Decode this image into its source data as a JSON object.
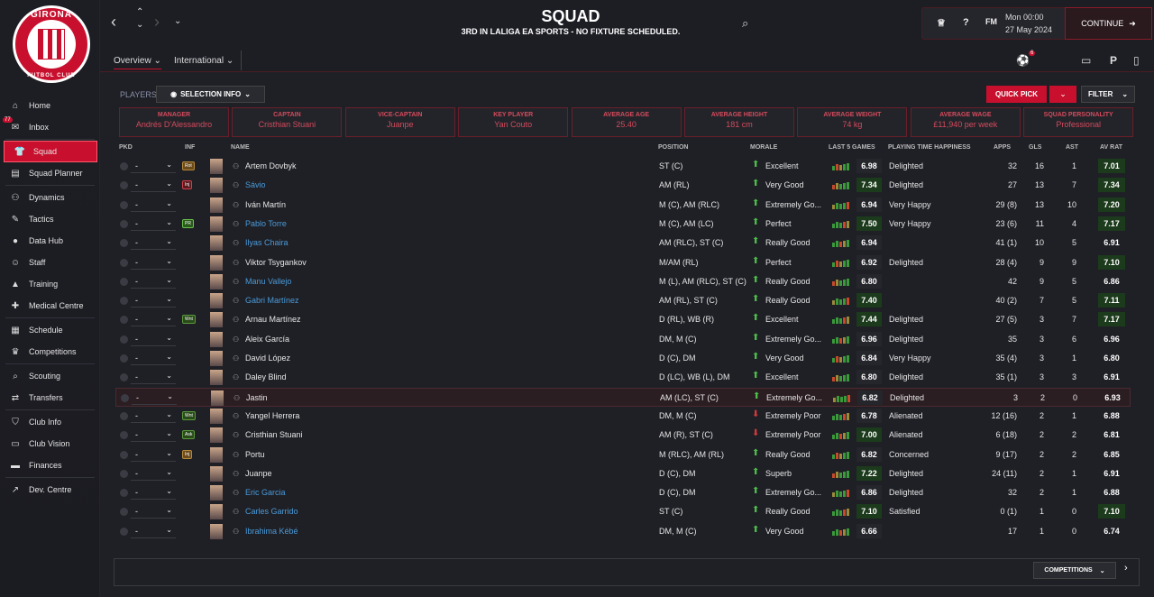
{
  "club": {
    "badge_top": "GIRONA",
    "badge_bottom": "FUTBOL CLUB"
  },
  "sidebar": {
    "items": [
      {
        "label": "Home",
        "icon": "home-icon",
        "glyph": "⌂"
      },
      {
        "label": "Inbox",
        "icon": "inbox-icon",
        "glyph": "✉",
        "badge": "77"
      },
      {
        "label": "Squad",
        "icon": "shirt-icon",
        "glyph": "👕",
        "active": true
      },
      {
        "label": "Squad Planner",
        "icon": "planner-icon",
        "glyph": "▤"
      },
      {
        "label": "Dynamics",
        "icon": "dynamics-icon",
        "glyph": "⚇"
      },
      {
        "label": "Tactics",
        "icon": "tactics-icon",
        "glyph": "✎"
      },
      {
        "label": "Data Hub",
        "icon": "datahub-icon",
        "glyph": "●"
      },
      {
        "label": "Staff",
        "icon": "staff-icon",
        "glyph": "☺"
      },
      {
        "label": "Training",
        "icon": "training-icon",
        "glyph": "▲"
      },
      {
        "label": "Medical Centre",
        "icon": "medical-icon",
        "glyph": "✚"
      },
      {
        "label": "Schedule",
        "icon": "schedule-icon",
        "glyph": "▦"
      },
      {
        "label": "Competitions",
        "icon": "trophy-icon",
        "glyph": "♛"
      },
      {
        "label": "Scouting",
        "icon": "scouting-icon",
        "glyph": "⌕"
      },
      {
        "label": "Transfers",
        "icon": "transfers-icon",
        "glyph": "⇄"
      },
      {
        "label": "Club Info",
        "icon": "club-info-icon",
        "glyph": "⛉"
      },
      {
        "label": "Club Vision",
        "icon": "club-vision-icon",
        "glyph": "▭"
      },
      {
        "label": "Finances",
        "icon": "finances-icon",
        "glyph": "▬"
      },
      {
        "label": "Dev. Centre",
        "icon": "dev-centre-icon",
        "glyph": "↗"
      }
    ]
  },
  "header": {
    "title": "SQUAD",
    "subtitle": "3RD IN LALIGA EA SPORTS - NO FIXTURE SCHEDULED.",
    "tabs": [
      "Overview",
      "International"
    ],
    "date_time": "Mon 00:00",
    "date": "27 May 2024",
    "continue_label": "CONTINUE",
    "fm_label": "FM",
    "notification_count": "6"
  },
  "toolbar": {
    "players_label": "PLAYERS",
    "selection_info": "SELECTION INFO",
    "quick_pick": "QUICK PICK",
    "filter": "FILTER"
  },
  "cards": [
    {
      "label": "MANAGER",
      "value": "Andrés D'Alessandro"
    },
    {
      "label": "CAPTAIN",
      "value": "Cristhian Stuani"
    },
    {
      "label": "VICE-CAPTAIN",
      "value": "Juanpe"
    },
    {
      "label": "KEY PLAYER",
      "value": "Yan Couto"
    },
    {
      "label": "AVERAGE AGE",
      "value": "25.40"
    },
    {
      "label": "AVERAGE HEIGHT",
      "value": "181 cm"
    },
    {
      "label": "AVERAGE WEIGHT",
      "value": "74 kg"
    },
    {
      "label": "AVERAGE WAGE",
      "value": "£11,940 per week"
    },
    {
      "label": "SQUAD PERSONALITY",
      "value": "Professional"
    }
  ],
  "table": {
    "headers": {
      "pkd": "PKD",
      "inf": "INF",
      "name": "NAME",
      "position": "POSITION",
      "morale": "MORALE",
      "last5": "LAST 5 GAMES",
      "pth": "PLAYING TIME HAPPINESS",
      "apps": "APPS",
      "gls": "GLS",
      "ast": "AST",
      "avrat": "AV RAT"
    },
    "rows": [
      {
        "pkd": "-",
        "inf": "Rot",
        "inf_type": "rot",
        "name": "Artem Dovbyk",
        "link": false,
        "position": "ST (C)",
        "morale": "Excellent",
        "morale_dir": "up",
        "last5": "6.98",
        "last5_good": false,
        "pth": "Delighted",
        "apps": "32",
        "gls": "16",
        "ast": "1",
        "avrat": "7.01",
        "avrat_good": true
      },
      {
        "pkd": "-",
        "inf": "Inj",
        "inf_type": "inj",
        "name": "Sávio",
        "link": true,
        "position": "AM (RL)",
        "morale": "Very Good",
        "morale_dir": "up",
        "last5": "7.34",
        "last5_good": true,
        "pth": "Delighted",
        "apps": "27",
        "gls": "13",
        "ast": "7",
        "avrat": "7.34",
        "avrat_good": true
      },
      {
        "pkd": "-",
        "inf": "",
        "inf_type": "",
        "name": "Iván Martín",
        "link": false,
        "position": "M (C), AM (RLC)",
        "morale": "Extremely Go...",
        "morale_dir": "up",
        "last5": "6.94",
        "last5_good": false,
        "pth": "Very Happy",
        "apps": "29 (8)",
        "gls": "13",
        "ast": "10",
        "avrat": "7.20",
        "avrat_good": true
      },
      {
        "pkd": "-",
        "inf": "PR",
        "inf_type": "pr",
        "name": "Pablo Torre",
        "link": true,
        "position": "M (C), AM (LC)",
        "morale": "Perfect",
        "morale_dir": "up",
        "last5": "7.50",
        "last5_good": true,
        "pth": "Very Happy",
        "apps": "23 (6)",
        "gls": "11",
        "ast": "4",
        "avrat": "7.17",
        "avrat_good": true
      },
      {
        "pkd": "-",
        "inf": "",
        "inf_type": "",
        "name": "Ilyas Chaira",
        "link": true,
        "position": "AM (RLC), ST (C)",
        "morale": "Really Good",
        "morale_dir": "up",
        "last5": "6.94",
        "last5_good": false,
        "pth": "",
        "apps": "41 (1)",
        "gls": "10",
        "ast": "5",
        "avrat": "6.91",
        "avrat_good": false
      },
      {
        "pkd": "-",
        "inf": "",
        "inf_type": "",
        "name": "Viktor Tsygankov",
        "link": false,
        "position": "M/AM (RL)",
        "morale": "Perfect",
        "morale_dir": "up",
        "last5": "6.92",
        "last5_good": false,
        "pth": "Delighted",
        "apps": "28 (4)",
        "gls": "9",
        "ast": "9",
        "avrat": "7.10",
        "avrat_good": true
      },
      {
        "pkd": "-",
        "inf": "",
        "inf_type": "",
        "name": "Manu Vallejo",
        "link": true,
        "position": "M (L), AM (RLC), ST (C)",
        "morale": "Really Good",
        "morale_dir": "up",
        "last5": "6.80",
        "last5_good": false,
        "pth": "",
        "apps": "42",
        "gls": "9",
        "ast": "5",
        "avrat": "6.86",
        "avrat_good": false
      },
      {
        "pkd": "-",
        "inf": "",
        "inf_type": "",
        "name": "Gabri Martínez",
        "link": true,
        "position": "AM (RL), ST (C)",
        "morale": "Really Good",
        "morale_dir": "up",
        "last5": "7.40",
        "last5_good": true,
        "pth": "",
        "apps": "40 (2)",
        "gls": "7",
        "ast": "5",
        "avrat": "7.11",
        "avrat_good": true
      },
      {
        "pkd": "-",
        "inf": "Wnt",
        "inf_type": "wnt",
        "name": "Arnau Martínez",
        "link": false,
        "position": "D (RL), WB (R)",
        "morale": "Excellent",
        "morale_dir": "up",
        "last5": "7.44",
        "last5_good": true,
        "pth": "Delighted",
        "apps": "27 (5)",
        "gls": "3",
        "ast": "7",
        "avrat": "7.17",
        "avrat_good": true
      },
      {
        "pkd": "-",
        "inf": "",
        "inf_type": "",
        "name": "Aleix García",
        "link": false,
        "position": "DM, M (C)",
        "morale": "Extremely Go...",
        "morale_dir": "up",
        "last5": "6.96",
        "last5_good": false,
        "pth": "Delighted",
        "apps": "35",
        "gls": "3",
        "ast": "6",
        "avrat": "6.96",
        "avrat_good": false
      },
      {
        "pkd": "-",
        "inf": "",
        "inf_type": "",
        "name": "David López",
        "link": false,
        "position": "D (C), DM",
        "morale": "Very Good",
        "morale_dir": "up",
        "last5": "6.84",
        "last5_good": false,
        "pth": "Very Happy",
        "apps": "35 (4)",
        "gls": "3",
        "ast": "1",
        "avrat": "6.80",
        "avrat_good": false
      },
      {
        "pkd": "-",
        "inf": "",
        "inf_type": "",
        "name": "Daley Blind",
        "link": false,
        "position": "D (LC), WB (L), DM",
        "morale": "Excellent",
        "morale_dir": "up",
        "last5": "6.80",
        "last5_good": false,
        "pth": "Delighted",
        "apps": "35 (1)",
        "gls": "3",
        "ast": "3",
        "avrat": "6.91",
        "avrat_good": false
      },
      {
        "pkd": "-",
        "inf": "",
        "inf_type": "",
        "name": "Jastin",
        "link": false,
        "position": "AM (LC), ST (C)",
        "morale": "Extremely Go...",
        "morale_dir": "up",
        "last5": "6.82",
        "last5_good": false,
        "pth": "Delighted",
        "apps": "3",
        "gls": "2",
        "ast": "0",
        "avrat": "6.93",
        "avrat_good": false,
        "highlight": true
      },
      {
        "pkd": "-",
        "inf": "Wnt",
        "inf_type": "wnt",
        "name": "Yangel Herrera",
        "link": false,
        "position": "DM, M (C)",
        "morale": "Extremely Poor",
        "morale_dir": "down",
        "last5": "6.78",
        "last5_good": false,
        "pth": "Alienated",
        "apps": "12 (16)",
        "gls": "2",
        "ast": "1",
        "avrat": "6.88",
        "avrat_good": false
      },
      {
        "pkd": "-",
        "inf": "Ask",
        "inf_type": "ask",
        "name": "Cristhian Stuani",
        "link": false,
        "position": "AM (R), ST (C)",
        "morale": "Extremely Poor",
        "morale_dir": "down",
        "last5": "7.00",
        "last5_good": true,
        "pth": "Alienated",
        "apps": "6 (18)",
        "gls": "2",
        "ast": "2",
        "avrat": "6.81",
        "avrat_good": false
      },
      {
        "pkd": "-",
        "inf": "Inj",
        "inf_type": "rot",
        "name": "Portu",
        "link": false,
        "position": "M (RLC), AM (RL)",
        "morale": "Really Good",
        "morale_dir": "up",
        "last5": "6.82",
        "last5_good": false,
        "pth": "Concerned",
        "apps": "9 (17)",
        "gls": "2",
        "ast": "2",
        "avrat": "6.85",
        "avrat_good": false
      },
      {
        "pkd": "-",
        "inf": "",
        "inf_type": "",
        "name": "Juanpe",
        "link": false,
        "position": "D (C), DM",
        "morale": "Superb",
        "morale_dir": "up",
        "last5": "7.22",
        "last5_good": true,
        "pth": "Delighted",
        "apps": "24 (11)",
        "gls": "2",
        "ast": "1",
        "avrat": "6.91",
        "avrat_good": false
      },
      {
        "pkd": "-",
        "inf": "",
        "inf_type": "",
        "name": "Eric Garcia",
        "link": true,
        "position": "D (C), DM",
        "morale": "Extremely Go...",
        "morale_dir": "up",
        "last5": "6.86",
        "last5_good": false,
        "pth": "Delighted",
        "apps": "32",
        "gls": "2",
        "ast": "1",
        "avrat": "6.88",
        "avrat_good": false
      },
      {
        "pkd": "-",
        "inf": "",
        "inf_type": "",
        "name": "Carles Garrido",
        "link": true,
        "position": "ST (C)",
        "morale": "Really Good",
        "morale_dir": "up",
        "last5": "7.10",
        "last5_good": true,
        "pth": "Satisfied",
        "apps": "0 (1)",
        "gls": "1",
        "ast": "0",
        "avrat": "7.10",
        "avrat_good": true
      },
      {
        "pkd": "-",
        "inf": "",
        "inf_type": "",
        "name": "Ibrahima Kébé",
        "link": true,
        "position": "DM, M (C)",
        "morale": "Very Good",
        "morale_dir": "up",
        "last5": "6.66",
        "last5_good": false,
        "pth": "",
        "apps": "17",
        "gls": "1",
        "ast": "0",
        "avrat": "6.74",
        "avrat_good": false
      }
    ]
  },
  "bottom": {
    "competitions_label": "COMPETITIONS"
  },
  "colors": {
    "accent": "#c8102e",
    "good": "#1c3a1c",
    "link": "#4a9ad8"
  }
}
